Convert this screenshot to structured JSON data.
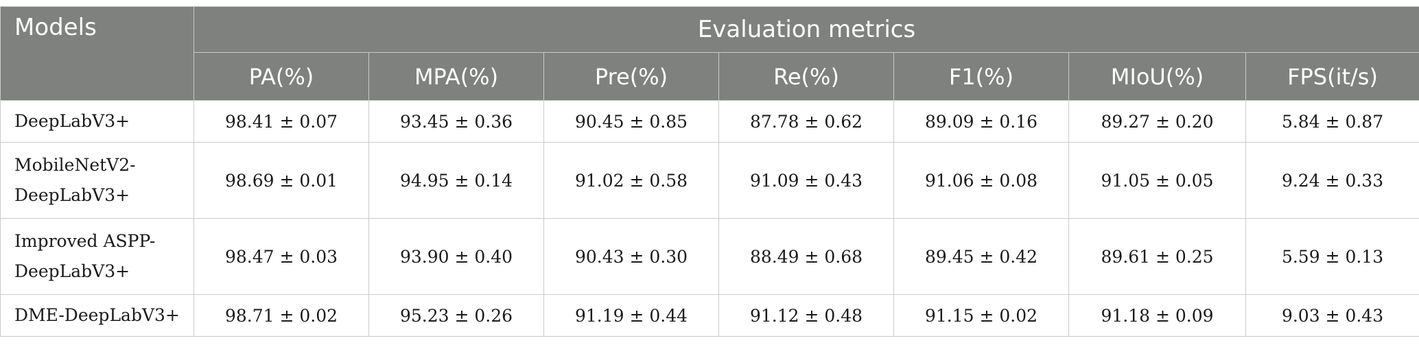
{
  "table": {
    "header_models": "Models",
    "header_group": "Evaluation metrics",
    "metrics": [
      "PA(%)",
      "MPA(%)",
      "Pre(%)",
      "Re(%)",
      "F1(%)",
      "MIoU(%)",
      "FPS(it/s)"
    ],
    "rows": [
      {
        "model_lines": [
          "DeepLabV3+"
        ],
        "values": [
          "98.41 ± 0.07",
          "93.45 ± 0.36",
          "90.45 ± 0.85",
          "87.78 ± 0.62",
          "89.09 ± 0.16",
          "89.27 ± 0.20",
          "5.84 ± 0.87"
        ]
      },
      {
        "model_lines": [
          "MobileNetV2-",
          "DeepLabV3+"
        ],
        "values": [
          "98.69 ± 0.01",
          "94.95 ± 0.14",
          "91.02 ± 0.58",
          "91.09 ± 0.43",
          "91.06 ± 0.08",
          "91.05 ± 0.05",
          "9.24 ± 0.33"
        ]
      },
      {
        "model_lines": [
          "Improved ASPP-",
          "DeepLabV3+"
        ],
        "values": [
          "98.47 ± 0.03",
          "93.90 ± 0.40",
          "90.43 ± 0.30",
          "88.49 ± 0.68",
          "89.45 ± 0.42",
          "89.61 ± 0.25",
          "5.59 ± 0.13"
        ]
      },
      {
        "model_lines": [
          "DME-DeepLabV3+"
        ],
        "values": [
          "98.71 ± 0.02",
          "95.23 ± 0.26",
          "91.19 ± 0.44",
          "91.12 ± 0.48",
          "91.15 ± 0.02",
          "91.18 ± 0.09",
          "9.03 ± 0.43"
        ]
      }
    ]
  },
  "colors": {
    "header_bg": "#7f817f",
    "header_text": "#ffffff",
    "border": "#c9cbc9",
    "body_text": "#1a1a1a"
  }
}
